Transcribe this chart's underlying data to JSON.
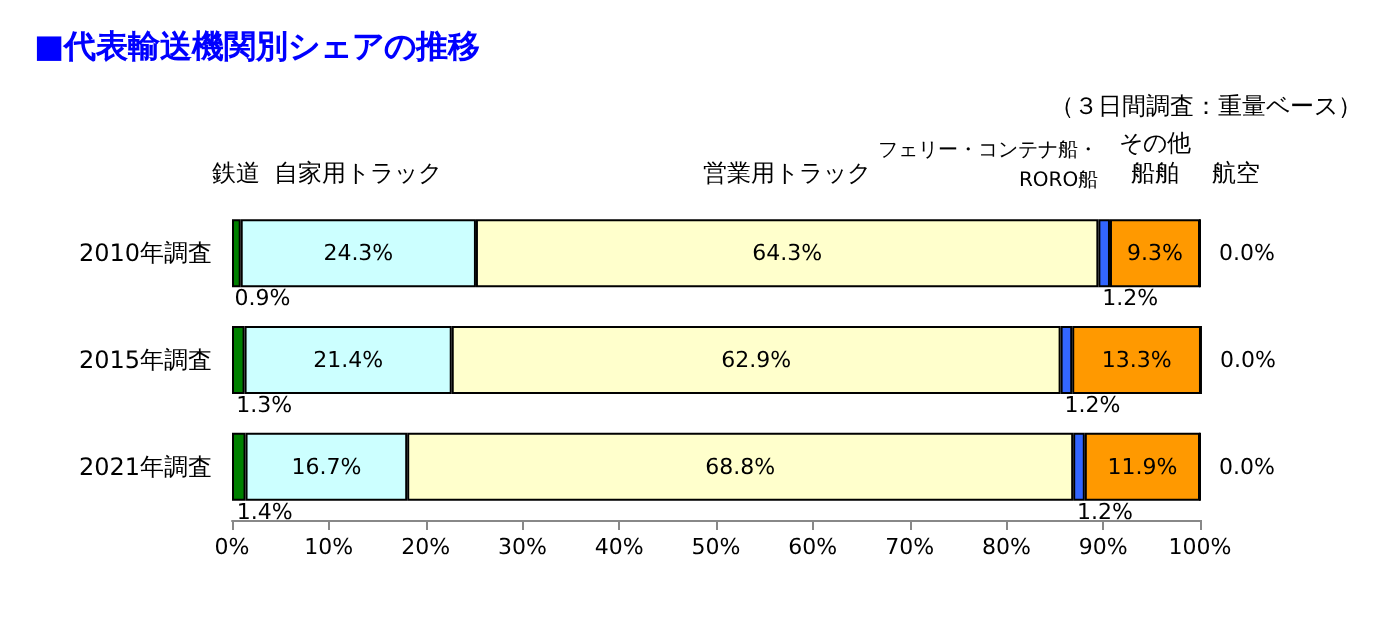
{
  "chart_data": {
    "type": "bar",
    "orientation": "horizontal",
    "stacked": true,
    "title": "■代表輸送機関別シェアの推移",
    "subtitle": "（３日間調査：重量ベース）",
    "categories": [
      "2010年調査",
      "2015年調査",
      "2021年調査"
    ],
    "series": [
      {
        "name": "鉄道",
        "color": "#008000",
        "values": [
          0.9,
          1.3,
          1.4
        ],
        "value_labels": [
          "0.9%",
          "1.3%",
          "1.4%"
        ]
      },
      {
        "name": "自家用トラック",
        "color": "#ccffff",
        "values": [
          24.3,
          21.4,
          16.7
        ],
        "value_labels": [
          "24.3%",
          "21.4%",
          "16.7%"
        ]
      },
      {
        "name": "営業用トラック",
        "color": "#ffffcc",
        "values": [
          64.3,
          62.9,
          68.8
        ],
        "value_labels": [
          "64.3%",
          "62.9%",
          "68.8%"
        ]
      },
      {
        "name": "フェリー・コンテナ船・RORO船",
        "color": "#3366ff",
        "values": [
          1.2,
          1.2,
          1.2
        ],
        "value_labels": [
          "1.2%",
          "1.2%",
          "1.2%"
        ]
      },
      {
        "name": "その他船舶",
        "color": "#ff9900",
        "values": [
          9.3,
          13.3,
          11.9
        ],
        "value_labels": [
          "9.3%",
          "13.3%",
          "11.9%"
        ]
      },
      {
        "name": "航空",
        "color": "#000000",
        "values": [
          0.0,
          0.0,
          0.0
        ],
        "value_labels": [
          "0.0%",
          "0.0%",
          "0.0%"
        ]
      }
    ],
    "xlim": [
      0,
      100
    ],
    "xticks": [
      {
        "value": 0,
        "label": "0%"
      },
      {
        "value": 10,
        "label": "10%"
      },
      {
        "value": 20,
        "label": "20%"
      },
      {
        "value": 30,
        "label": "30%"
      },
      {
        "value": 40,
        "label": "40%"
      },
      {
        "value": 50,
        "label": "50%"
      },
      {
        "value": 60,
        "label": "60%"
      },
      {
        "value": 70,
        "label": "70%"
      },
      {
        "value": 80,
        "label": "80%"
      },
      {
        "value": 90,
        "label": "90%"
      },
      {
        "value": 100,
        "label": "100%"
      }
    ],
    "grid": false,
    "legend": false
  }
}
